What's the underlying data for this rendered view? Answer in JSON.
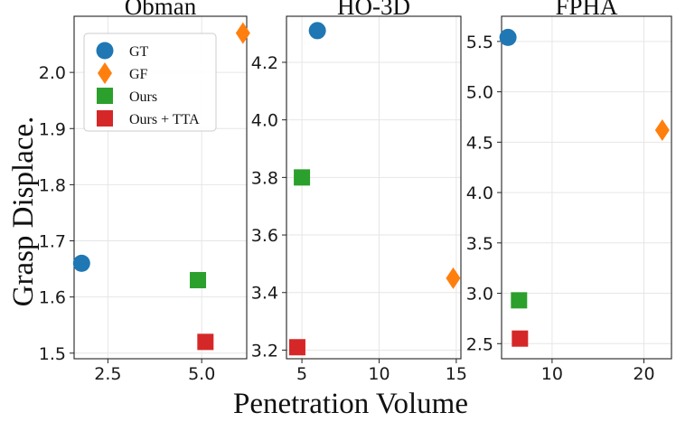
{
  "colors": {
    "GT": "#1f77b4",
    "GF": "#ff7f0e",
    "Ours": "#2ca02c",
    "Ours + TTA": "#d62728"
  },
  "markers": {
    "GT": "circle",
    "GF": "diamond",
    "Ours": "square",
    "Ours + TTA": "square"
  },
  "labels": {
    "xlabel": "Penetration Volume",
    "ylabel": "Grasp Displace."
  },
  "legend": {
    "placement": "top-left of first panel",
    "entries": [
      "GT",
      "GF",
      "Ours",
      "Ours + TTA"
    ]
  },
  "chart_data": [
    {
      "type": "scatter",
      "title": "Obman",
      "xlim": [
        1.6,
        6.2
      ],
      "ylim": [
        1.49,
        2.1
      ],
      "xticks": [
        2.5,
        5.0
      ],
      "xtick_labels": [
        "2.5",
        "5.0"
      ],
      "yticks": [
        1.5,
        1.6,
        1.7,
        1.8,
        1.9,
        2.0
      ],
      "ytick_labels": [
        "1.5",
        "1.6",
        "1.7",
        "1.8",
        "1.9",
        "2.0"
      ],
      "points": [
        {
          "series": "GT",
          "x": 1.8,
          "y": 1.66
        },
        {
          "series": "GF",
          "x": 6.1,
          "y": 2.07
        },
        {
          "series": "Ours",
          "x": 4.9,
          "y": 1.63
        },
        {
          "series": "Ours + TTA",
          "x": 5.1,
          "y": 1.52
        }
      ]
    },
    {
      "type": "scatter",
      "title": "HO-3D",
      "xlim": [
        4.0,
        15.3
      ],
      "ylim": [
        3.17,
        4.36
      ],
      "xticks": [
        5,
        10,
        15
      ],
      "xtick_labels": [
        "5",
        "10",
        "15"
      ],
      "yticks": [
        3.2,
        3.4,
        3.6,
        3.8,
        4.0,
        4.2
      ],
      "ytick_labels": [
        "3.2",
        "3.4",
        "3.6",
        "3.8",
        "4.0",
        "4.2"
      ],
      "points": [
        {
          "series": "GT",
          "x": 6.0,
          "y": 4.31
        },
        {
          "series": "GF",
          "x": 14.8,
          "y": 3.45
        },
        {
          "series": "Ours",
          "x": 5.0,
          "y": 3.8
        },
        {
          "series": "Ours + TTA",
          "x": 4.7,
          "y": 3.21
        }
      ]
    },
    {
      "type": "scatter",
      "title": "FPHA",
      "xlim": [
        4.5,
        23.0
      ],
      "ylim": [
        2.35,
        5.75
      ],
      "xticks": [
        10,
        20
      ],
      "xtick_labels": [
        "10",
        "20"
      ],
      "yticks": [
        2.5,
        3.0,
        3.5,
        4.0,
        4.5,
        5.0,
        5.5
      ],
      "ytick_labels": [
        "2.5",
        "3.0",
        "3.5",
        "4.0",
        "4.5",
        "5.0",
        "5.5"
      ],
      "points": [
        {
          "series": "GT",
          "x": 5.2,
          "y": 5.54
        },
        {
          "series": "GF",
          "x": 22.0,
          "y": 4.62
        },
        {
          "series": "Ours",
          "x": 6.4,
          "y": 2.93
        },
        {
          "series": "Ours + TTA",
          "x": 6.5,
          "y": 2.55
        }
      ]
    }
  ]
}
